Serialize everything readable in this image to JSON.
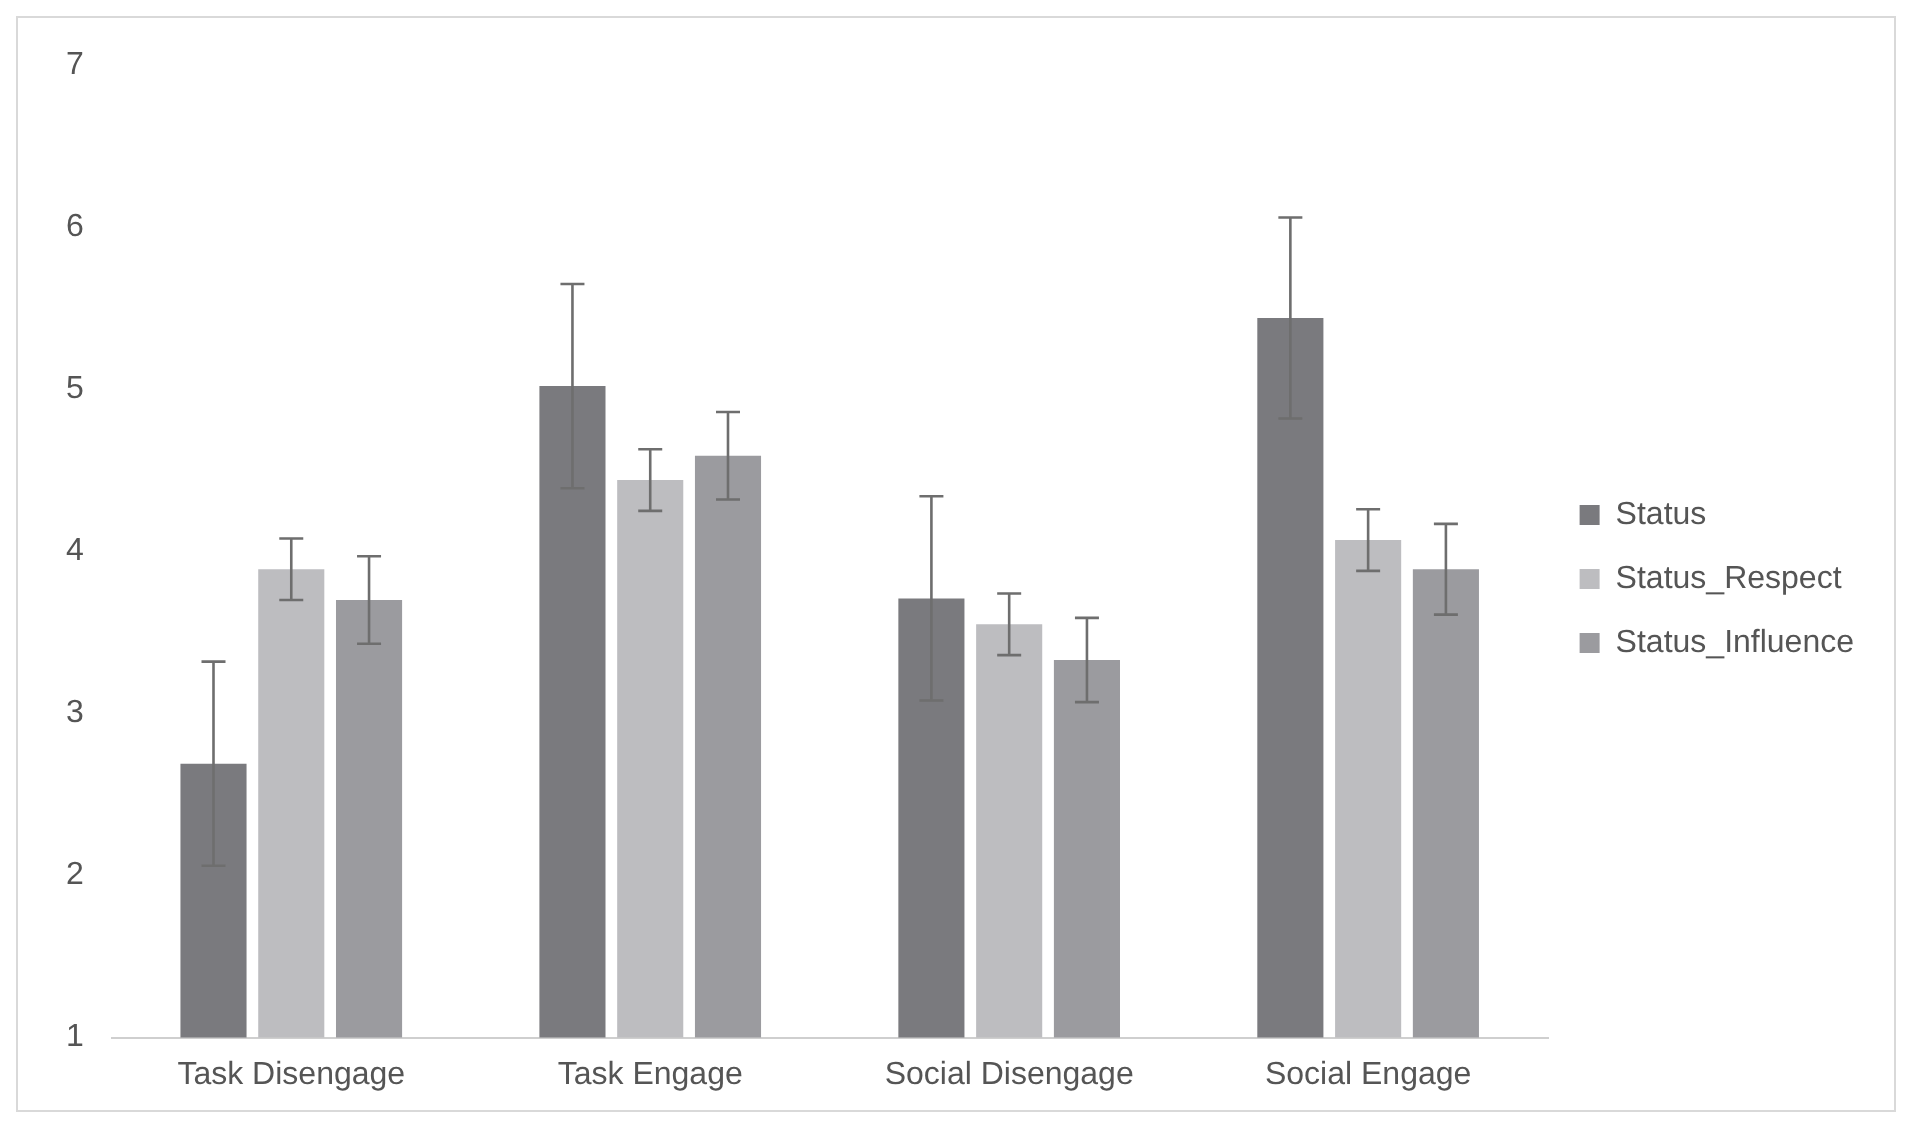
{
  "chart_data": {
    "type": "bar",
    "categories": [
      "Task Disengage",
      "Task Engage",
      "Social Disengage",
      "Social Engage"
    ],
    "series": [
      {
        "name": "Status",
        "color": "#7a7a7e",
        "values": [
          2.69,
          5.02,
          3.71,
          5.44
        ],
        "errors": [
          0.63,
          0.63,
          0.63,
          0.62
        ]
      },
      {
        "name": "Status_Respect",
        "color": "#bdbdc0",
        "values": [
          3.89,
          4.44,
          3.55,
          4.07
        ],
        "errors": [
          0.19,
          0.19,
          0.19,
          0.19
        ]
      },
      {
        "name": "Status_Influence",
        "color": "#9b9b9f",
        "values": [
          3.7,
          4.59,
          3.33,
          3.89
        ],
        "errors": [
          0.27,
          0.27,
          0.26,
          0.28
        ]
      }
    ],
    "ylim": [
      1,
      7
    ],
    "yticks": [
      1,
      2,
      3,
      4,
      5,
      6,
      7
    ],
    "grid": false,
    "legend": "right"
  }
}
